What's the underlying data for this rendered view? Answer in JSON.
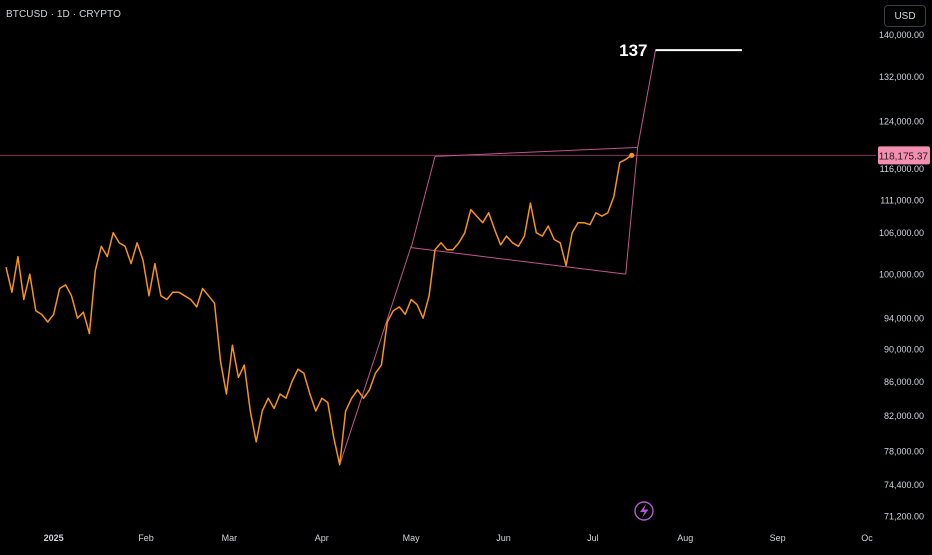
{
  "header": {
    "symbol": "BTCUSD · 1D · CRYPTO",
    "currency_button": "USD"
  },
  "colors": {
    "background": "#000000",
    "price_line": "#f7931a",
    "pattern_lines": "#c2558a",
    "target_line": "#ffffff",
    "current_price_badge": "#f48fb1",
    "axis_text": "#d1d4dc"
  },
  "icons": {
    "bottom_marker": "lightning-bolt-icon"
  },
  "chart_data": {
    "type": "line",
    "title": "",
    "series": [
      {
        "name": "",
        "x": [
          "2024-12-16",
          "2024-12-18",
          "2024-12-20",
          "2024-12-22",
          "2024-12-24",
          "2024-12-26",
          "2024-12-28",
          "2024-12-30",
          "2025-01-01",
          "2025-01-03",
          "2025-01-05",
          "2025-01-07",
          "2025-01-09",
          "2025-01-11",
          "2025-01-13",
          "2025-01-15",
          "2025-01-17",
          "2025-01-19",
          "2025-01-21",
          "2025-01-23",
          "2025-01-25",
          "2025-01-27",
          "2025-01-29",
          "2025-01-31",
          "2025-02-02",
          "2025-02-04",
          "2025-02-06",
          "2025-02-08",
          "2025-02-10",
          "2025-02-12",
          "2025-02-14",
          "2025-02-16",
          "2025-02-18",
          "2025-02-20",
          "2025-02-22",
          "2025-02-24",
          "2025-02-26",
          "2025-02-28",
          "2025-03-02",
          "2025-03-04",
          "2025-03-06",
          "2025-03-08",
          "2025-03-10",
          "2025-03-12",
          "2025-03-14",
          "2025-03-16",
          "2025-03-18",
          "2025-03-20",
          "2025-03-22",
          "2025-03-24",
          "2025-03-26",
          "2025-03-28",
          "2025-03-30",
          "2025-04-01",
          "2025-04-03",
          "2025-04-05",
          "2025-04-07",
          "2025-04-09",
          "2025-04-11",
          "2025-04-13",
          "2025-04-15",
          "2025-04-17",
          "2025-04-19",
          "2025-04-21",
          "2025-04-23",
          "2025-04-25",
          "2025-04-27",
          "2025-04-29",
          "2025-05-01",
          "2025-05-03",
          "2025-05-05",
          "2025-05-07",
          "2025-05-09",
          "2025-05-11",
          "2025-05-13",
          "2025-05-15",
          "2025-05-17",
          "2025-05-19",
          "2025-05-21",
          "2025-05-23",
          "2025-05-25",
          "2025-05-27",
          "2025-05-29",
          "2025-05-31",
          "2025-06-02",
          "2025-06-04",
          "2025-06-06",
          "2025-06-08",
          "2025-06-10",
          "2025-06-12",
          "2025-06-14",
          "2025-06-16",
          "2025-06-18",
          "2025-06-20",
          "2025-06-22",
          "2025-06-24",
          "2025-06-26",
          "2025-06-28",
          "2025-06-30",
          "2025-07-02",
          "2025-07-04",
          "2025-07-06",
          "2025-07-08",
          "2025-07-10",
          "2025-07-12",
          "2025-07-14"
        ],
        "values": [
          101000,
          97500,
          102500,
          96500,
          100000,
          95000,
          94500,
          93500,
          94500,
          98000,
          98500,
          97000,
          94000,
          94800,
          92000,
          100500,
          104000,
          102500,
          106000,
          104500,
          104000,
          101500,
          104500,
          102000,
          97000,
          101500,
          97000,
          96500,
          97500,
          97500,
          97000,
          96500,
          95500,
          98000,
          97000,
          96000,
          88500,
          84500,
          90500,
          86500,
          88000,
          82500,
          79000,
          82500,
          84000,
          82800,
          84500,
          84000,
          86000,
          87500,
          87000,
          84500,
          82500,
          84000,
          83500,
          79500,
          76500,
          82500,
          84000,
          85000,
          84000,
          85000,
          87000,
          88000,
          93500,
          95000,
          95500,
          94500,
          96500,
          95800,
          94000,
          97000,
          103500,
          104500,
          103500,
          103500,
          104500,
          106000,
          109500,
          108500,
          107500,
          109000,
          106500,
          104200,
          105500,
          104500,
          104000,
          105500,
          110500,
          106000,
          105500,
          107000,
          105000,
          104500,
          101200,
          106000,
          107500,
          107500,
          107200,
          109000,
          108500,
          109000,
          111500,
          117000,
          117500,
          118175.37
        ]
      }
    ],
    "current_price": "118,175.37",
    "target_label": "137",
    "pattern": {
      "pole": [
        [
          "2025-04-07",
          76500
        ],
        [
          "2025-05-01",
          104000
        ]
      ],
      "flag_upper": [
        [
          "2025-05-09",
          118000
        ],
        [
          "2025-07-16",
          119500
        ]
      ],
      "flag_lower": [
        [
          "2025-05-01",
          103800
        ],
        [
          "2025-07-12",
          100000
        ]
      ],
      "breakout": [
        [
          "2025-07-16",
          119500
        ],
        [
          "2025-07-22",
          137000
        ]
      ],
      "target": [
        [
          "2025-07-22",
          137000
        ],
        [
          "2025-08-20",
          137000
        ]
      ]
    },
    "xaxis": {
      "ticks": [
        {
          "date": "2025-01-01",
          "label": "2025"
        },
        {
          "date": "2025-02-01",
          "label": "Feb"
        },
        {
          "date": "2025-03-01",
          "label": "Mar"
        },
        {
          "date": "2025-04-01",
          "label": "Apr"
        },
        {
          "date": "2025-05-01",
          "label": "May"
        },
        {
          "date": "2025-06-01",
          "label": "Jun"
        },
        {
          "date": "2025-07-01",
          "label": "Jul"
        },
        {
          "date": "2025-08-01",
          "label": "Aug"
        },
        {
          "date": "2025-09-01",
          "label": "Sep"
        },
        {
          "date": "2025-10-01",
          "label": "Oc"
        }
      ],
      "range": [
        "2024-12-14",
        "2025-10-04"
      ]
    },
    "yaxis": {
      "scale": "log",
      "range": [
        70000,
        147000
      ],
      "ticks": [
        {
          "value": 140000,
          "label": "140,000.00"
        },
        {
          "value": 132000,
          "label": "132,000.00"
        },
        {
          "value": 124000,
          "label": "124,000.00"
        },
        {
          "value": 116000,
          "label": "116,000.00"
        },
        {
          "value": 111000,
          "label": "111,000.00"
        },
        {
          "value": 106000,
          "label": "106,000.00"
        },
        {
          "value": 100000,
          "label": "100,000.00"
        },
        {
          "value": 94000,
          "label": "94,000.00"
        },
        {
          "value": 90000,
          "label": "90,000.00"
        },
        {
          "value": 86000,
          "label": "86,000.00"
        },
        {
          "value": 82000,
          "label": "82,000.00"
        },
        {
          "value": 78000,
          "label": "78,000.00"
        },
        {
          "value": 74400,
          "label": "74,400.00"
        },
        {
          "value": 71200,
          "label": "71,200.00"
        }
      ]
    },
    "grid": false,
    "legend": "none"
  }
}
